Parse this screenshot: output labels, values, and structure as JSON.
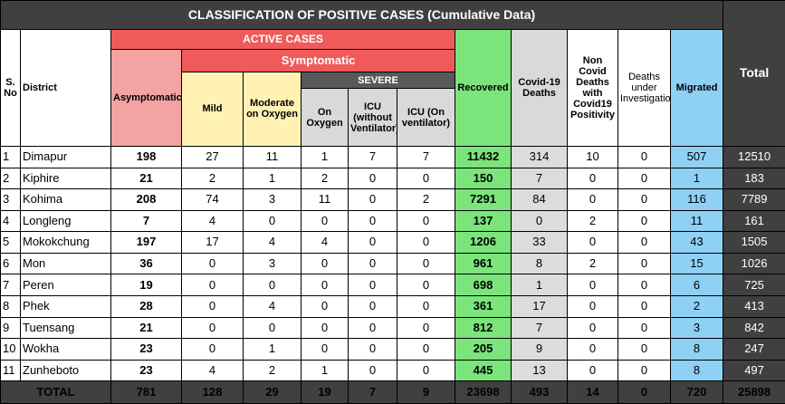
{
  "title": "CLASSIFICATION OF POSITIVE CASES (Cumulative Data)",
  "headers": {
    "sno": "S. No",
    "district": "District",
    "active_cases": "ACTIVE CASES",
    "symptomatic": "Symptomatic",
    "asymptomatic": "Asymptomatic",
    "mild": "Mild",
    "moderate": "Moderate on Oxygen",
    "severe": "SEVERE",
    "on_oxygen": "On Oxygen",
    "icu_without": "ICU (without Ventilator)",
    "icu_on": "ICU (On ventilator)",
    "recovered": "Recovered",
    "covid_deaths": "Covid-19 Deaths",
    "non_covid_deaths": "Non Covid Deaths with Covid19 Positivity",
    "deaths_investigation": "Deaths under Investigation",
    "migrated": "Migrated",
    "total": "Total"
  },
  "rows": [
    {
      "sno": "1",
      "district": "Dimapur",
      "asym": "198",
      "mild": "27",
      "moderate": "11",
      "oxygen": "1",
      "icu_wo": "7",
      "icu_on": "7",
      "recovered": "11432",
      "covid_deaths": "314",
      "non_covid": "10",
      "investigation": "0",
      "migrated": "507",
      "total": "12510"
    },
    {
      "sno": "2",
      "district": "Kiphire",
      "asym": "21",
      "mild": "2",
      "moderate": "1",
      "oxygen": "2",
      "icu_wo": "0",
      "icu_on": "0",
      "recovered": "150",
      "covid_deaths": "7",
      "non_covid": "0",
      "investigation": "0",
      "migrated": "1",
      "total": "183"
    },
    {
      "sno": "3",
      "district": "Kohima",
      "asym": "208",
      "mild": "74",
      "moderate": "3",
      "oxygen": "11",
      "icu_wo": "0",
      "icu_on": "2",
      "recovered": "7291",
      "covid_deaths": "84",
      "non_covid": "0",
      "investigation": "0",
      "migrated": "116",
      "total": "7789"
    },
    {
      "sno": "4",
      "district": "Longleng",
      "asym": "7",
      "mild": "4",
      "moderate": "0",
      "oxygen": "0",
      "icu_wo": "0",
      "icu_on": "0",
      "recovered": "137",
      "covid_deaths": "0",
      "non_covid": "2",
      "investigation": "0",
      "migrated": "11",
      "total": "161"
    },
    {
      "sno": "5",
      "district": "Mokokchung",
      "asym": "197",
      "mild": "17",
      "moderate": "4",
      "oxygen": "4",
      "icu_wo": "0",
      "icu_on": "0",
      "recovered": "1206",
      "covid_deaths": "33",
      "non_covid": "0",
      "investigation": "0",
      "migrated": "43",
      "total": "1505"
    },
    {
      "sno": "6",
      "district": "Mon",
      "asym": "36",
      "mild": "0",
      "moderate": "3",
      "oxygen": "0",
      "icu_wo": "0",
      "icu_on": "0",
      "recovered": "961",
      "covid_deaths": "8",
      "non_covid": "2",
      "investigation": "0",
      "migrated": "15",
      "total": "1026"
    },
    {
      "sno": "7",
      "district": "Peren",
      "asym": "19",
      "mild": "0",
      "moderate": "0",
      "oxygen": "0",
      "icu_wo": "0",
      "icu_on": "0",
      "recovered": "698",
      "covid_deaths": "1",
      "non_covid": "0",
      "investigation": "0",
      "migrated": "6",
      "total": "725"
    },
    {
      "sno": "8",
      "district": "Phek",
      "asym": "28",
      "mild": "0",
      "moderate": "4",
      "oxygen": "0",
      "icu_wo": "0",
      "icu_on": "0",
      "recovered": "361",
      "covid_deaths": "17",
      "non_covid": "0",
      "investigation": "0",
      "migrated": "2",
      "total": "413"
    },
    {
      "sno": "9",
      "district": "Tuensang",
      "asym": "21",
      "mild": "0",
      "moderate": "0",
      "oxygen": "0",
      "icu_wo": "0",
      "icu_on": "0",
      "recovered": "812",
      "covid_deaths": "7",
      "non_covid": "0",
      "investigation": "0",
      "migrated": "3",
      "total": "842"
    },
    {
      "sno": "10",
      "district": "Wokha",
      "asym": "23",
      "mild": "0",
      "moderate": "1",
      "oxygen": "0",
      "icu_wo": "0",
      "icu_on": "0",
      "recovered": "205",
      "covid_deaths": "9",
      "non_covid": "0",
      "investigation": "0",
      "migrated": "8",
      "total": "247"
    },
    {
      "sno": "11",
      "district": "Zunheboto",
      "asym": "23",
      "mild": "4",
      "moderate": "2",
      "oxygen": "1",
      "icu_wo": "0",
      "icu_on": "0",
      "recovered": "445",
      "covid_deaths": "13",
      "non_covid": "0",
      "investigation": "0",
      "migrated": "8",
      "total": "497"
    }
  ],
  "totals": {
    "label": "TOTAL",
    "asym": "781",
    "mild": "128",
    "moderate": "29",
    "oxygen": "19",
    "icu_wo": "7",
    "icu_on": "9",
    "recovered": "23698",
    "covid_deaths": "493",
    "non_covid": "14",
    "investigation": "0",
    "migrated": "720",
    "total": "25898"
  },
  "colors": {
    "dark_header": "#404040",
    "active_red": "#ef5b5b",
    "asymptomatic_pink": "#f4a3a3",
    "moderate_yellow": "#fff2b3",
    "recovered_green": "#7be47b",
    "migrated_blue": "#8fd0f5",
    "grey": "#d9d9d9"
  }
}
